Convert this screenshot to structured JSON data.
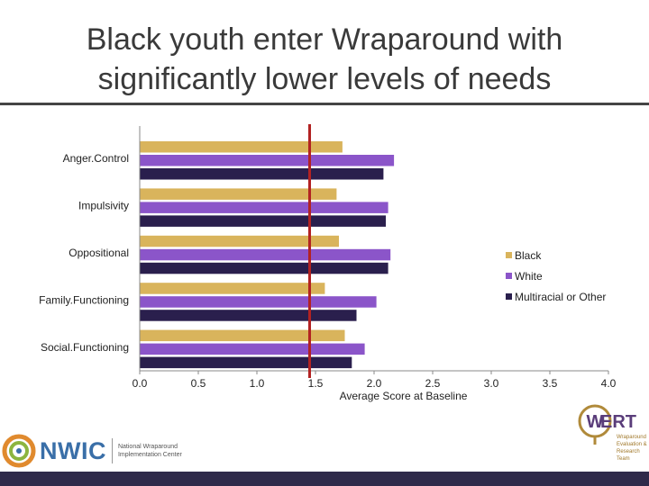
{
  "slide": {
    "title_line1": "Black youth enter Wraparound with",
    "title_line2": "significantly lower levels of needs"
  },
  "chart_data": {
    "type": "bar",
    "orientation": "horizontal",
    "categories": [
      "Anger.Control",
      "Impulsivity",
      "Oppositional",
      "Family.Functioning",
      "Social.Functioning"
    ],
    "series": [
      {
        "name": "Black",
        "values": [
          1.73,
          1.68,
          1.7,
          1.58,
          1.75
        ],
        "color": "#d9b45c"
      },
      {
        "name": "White",
        "values": [
          2.17,
          2.12,
          2.14,
          2.02,
          1.92
        ],
        "color": "#8b55c9"
      },
      {
        "name": "Multiracial or Other",
        "values": [
          2.08,
          2.1,
          2.12,
          1.85,
          1.81
        ],
        "color": "#2a1f4d"
      }
    ],
    "xlabel": "Average Score at Baseline",
    "xlim": [
      0,
      4.0
    ],
    "xticks": [
      "0.0",
      "0.5",
      "1.0",
      "1.5",
      "2.0",
      "2.5",
      "3.0",
      "3.5",
      "4.0"
    ],
    "reference_line": {
      "x": 1.45,
      "color": "#b22222"
    },
    "grid": false,
    "legend_position": "right"
  },
  "logos": {
    "nwic": {
      "name": "NWIC",
      "sub_line1": "National Wraparound",
      "sub_line2": "Implementation Center"
    },
    "wert": {
      "name": "ERT",
      "sub_line1": "Wraparound",
      "sub_line2": "Evaluation &",
      "sub_line3": "Research",
      "sub_line4": "Team"
    }
  },
  "colors": {
    "footer": "#2f2a4a",
    "title_text": "#3a3a3a"
  }
}
